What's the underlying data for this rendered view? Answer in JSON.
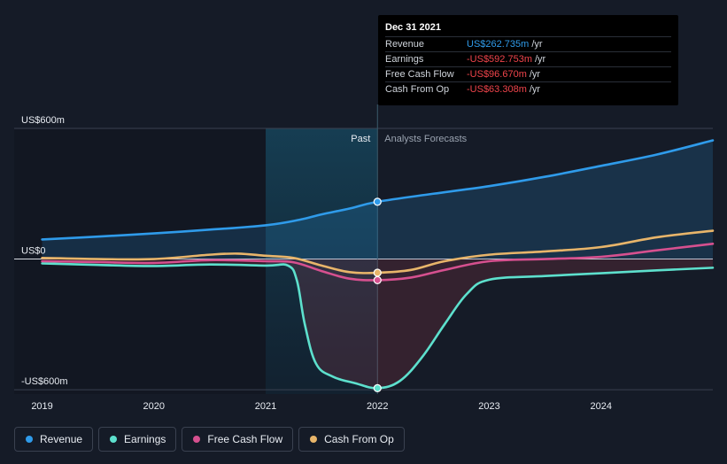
{
  "tooltip": {
    "date": "Dec 31 2021",
    "rows": [
      {
        "label": "Revenue",
        "value": "US$262.735m",
        "unit": "/yr",
        "color": "#2f9bea"
      },
      {
        "label": "Earnings",
        "value": "-US$592.753m",
        "unit": "/yr",
        "color": "#f0444b"
      },
      {
        "label": "Free Cash Flow",
        "value": "-US$96.670m",
        "unit": "/yr",
        "color": "#f0444b"
      },
      {
        "label": "Cash From Op",
        "value": "-US$63.308m",
        "unit": "/yr",
        "color": "#f0444b"
      }
    ]
  },
  "legend": [
    {
      "label": "Revenue",
      "color": "#2f9bea"
    },
    {
      "label": "Earnings",
      "color": "#5de0cd"
    },
    {
      "label": "Free Cash Flow",
      "color": "#d6508f"
    },
    {
      "label": "Cash From Op",
      "color": "#e8b56a"
    }
  ],
  "chart_data": {
    "type": "line",
    "title": "",
    "xlabel": "",
    "ylabel": "",
    "y_tick_labels": [
      {
        "value": 600,
        "label": "US$600m"
      },
      {
        "value": 0,
        "label": "US$0"
      },
      {
        "value": -600,
        "label": "-US$600m"
      }
    ],
    "x_tick_labels": [
      {
        "value": 2019,
        "label": "2019"
      },
      {
        "value": 2020,
        "label": "2020"
      },
      {
        "value": 2021,
        "label": "2021"
      },
      {
        "value": 2022,
        "label": "2022"
      },
      {
        "value": 2023,
        "label": "2023"
      },
      {
        "value": 2024,
        "label": "2024"
      }
    ],
    "xlim": [
      2018.75,
      2025.0
    ],
    "ylim": [
      -620,
      600
    ],
    "past_label": "Past",
    "forecast_label": "Analysts Forecasts",
    "past_end": 2022.0,
    "highlight_start": 2021.0,
    "series": [
      {
        "name": "Revenue",
        "color": "#2f9bea",
        "x": [
          2019.0,
          2019.5,
          2020.0,
          2020.5,
          2021.0,
          2021.3,
          2021.5,
          2021.75,
          2022.0,
          2022.5,
          2023.0,
          2023.5,
          2024.0,
          2024.5,
          2025.0
        ],
        "y": [
          90,
          103,
          118,
          135,
          155,
          180,
          205,
          232,
          263,
          300,
          335,
          378,
          428,
          480,
          545
        ]
      },
      {
        "name": "Earnings",
        "color": "#5de0cd",
        "x": [
          2019.0,
          2019.5,
          2020.0,
          2020.5,
          2021.0,
          2021.2,
          2021.28,
          2021.35,
          2021.45,
          2021.6,
          2021.8,
          2022.0,
          2022.2,
          2022.4,
          2022.6,
          2022.8,
          2023.0,
          2023.5,
          2024.0,
          2024.5,
          2025.0
        ],
        "y": [
          -20,
          -27,
          -32,
          -25,
          -30,
          -30,
          -100,
          -300,
          -480,
          -540,
          -570,
          -593,
          -560,
          -450,
          -300,
          -160,
          -95,
          -78,
          -65,
          -52,
          -40
        ]
      },
      {
        "name": "Free Cash Flow",
        "color": "#d6508f",
        "x": [
          2019.0,
          2019.5,
          2020.0,
          2020.5,
          2021.0,
          2021.25,
          2021.5,
          2021.75,
          2022.0,
          2022.3,
          2022.6,
          2023.0,
          2023.5,
          2024.0,
          2024.5,
          2025.0
        ],
        "y": [
          -10,
          -14,
          -18,
          -5,
          -10,
          -15,
          -55,
          -90,
          -97,
          -85,
          -50,
          -10,
          0,
          10,
          40,
          70
        ]
      },
      {
        "name": "Cash From Op",
        "color": "#e8b56a",
        "x": [
          2019.0,
          2019.5,
          2020.0,
          2020.5,
          2020.75,
          2021.0,
          2021.25,
          2021.5,
          2021.75,
          2022.0,
          2022.3,
          2022.6,
          2023.0,
          2023.5,
          2024.0,
          2024.5,
          2025.0
        ],
        "y": [
          5,
          0,
          0,
          20,
          25,
          15,
          5,
          -30,
          -60,
          -63,
          -50,
          -10,
          20,
          35,
          55,
          100,
          130
        ]
      }
    ],
    "markers": [
      {
        "series": "Revenue",
        "x": 2022.0,
        "y": 263
      },
      {
        "series": "Earnings",
        "x": 2022.0,
        "y": -593
      },
      {
        "series": "Free Cash Flow",
        "x": 2022.0,
        "y": -97
      },
      {
        "series": "Cash From Op",
        "x": 2022.0,
        "y": -63
      }
    ]
  }
}
